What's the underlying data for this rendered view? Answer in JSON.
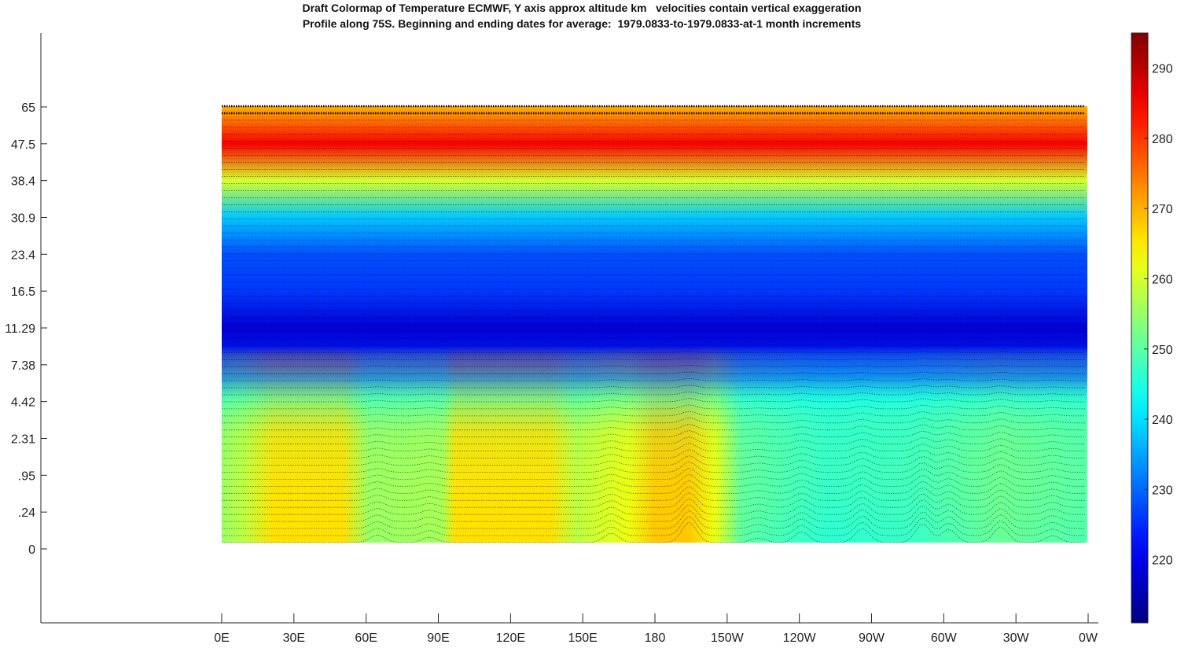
{
  "chart_data": {
    "type": "heatmap",
    "title_lines": [
      "Draft Colormap of Temperature ECMWF, Y axis approx altitude km   velocities contain vertical exaggeration",
      "Profile along 75S. Beginning and ending dates for average:  1979.0833-to-1979.0833-at-1 month increments"
    ],
    "x_ticks": [
      "0E",
      "30E",
      "60E",
      "90E",
      "120E",
      "150E",
      "180",
      "150W",
      "120W",
      "90W",
      "60W",
      "30W",
      "0W"
    ],
    "y_ticks": [
      "65",
      "47.5",
      "38.4",
      "30.9",
      "23.4",
      "16.5",
      "11.29",
      "7.38",
      "4.42",
      "2.31",
      ".95",
      ".24",
      "0"
    ],
    "colorbar": {
      "ticks": [
        290,
        280,
        270,
        260,
        250,
        240,
        230,
        220
      ],
      "range": [
        211,
        295
      ],
      "colormap": "jet"
    },
    "temperature_profile_K": {
      "levels_from_top": [
        "65",
        "47.5",
        "38.4",
        "30.9",
        "23.4",
        "16.5",
        "11.29",
        "7.38",
        "4.42",
        "2.31",
        ".95",
        ".24",
        "0"
      ],
      "values": [
        270,
        285,
        260,
        238,
        228,
        226,
        218,
        224,
        244,
        252,
        258,
        262,
        264
      ]
    },
    "surface_warm_longitudes": [
      "15E-60E",
      "100E-140E",
      "165E-175W"
    ],
    "colors": {
      "axis": "#262626",
      "vectors": "#000000"
    }
  }
}
